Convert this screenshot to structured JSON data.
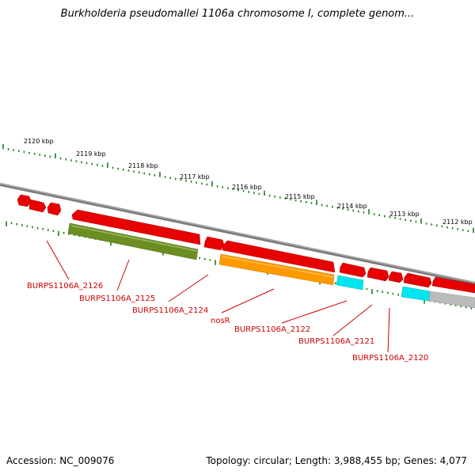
{
  "title": "Burkholderia pseudomallei 1106a chromosome I, complete genom...",
  "scale_labels": [
    "2120 kbp",
    "2119 kbp",
    "2118 kbp",
    "2117 kbp",
    "2116 kbp",
    "2115 kbp",
    "2114 kbp",
    "2113 kbp",
    "2112 kbp"
  ],
  "gene_labels": [
    "BURPS1106A_2126",
    "BURPS1106A_2125",
    "BURPS1106A_2124",
    "nosR",
    "BURPS1106A_2122",
    "BURPS1106A_2121",
    "BURPS1106A_2120"
  ],
  "colors": {
    "forward": "#e60000",
    "olive": "#6b8e23",
    "orange": "#ff9900",
    "cyan": "#00e5ee",
    "grey": "#bbbbbb",
    "backbone": "#888888",
    "ticks": "#1a7f1a",
    "label": "#cc0000"
  },
  "footer": {
    "accession": "Accession: NC_009076",
    "topology": "Topology: circular; Length: 3,988,455 bp; Genes: 4,077"
  }
}
